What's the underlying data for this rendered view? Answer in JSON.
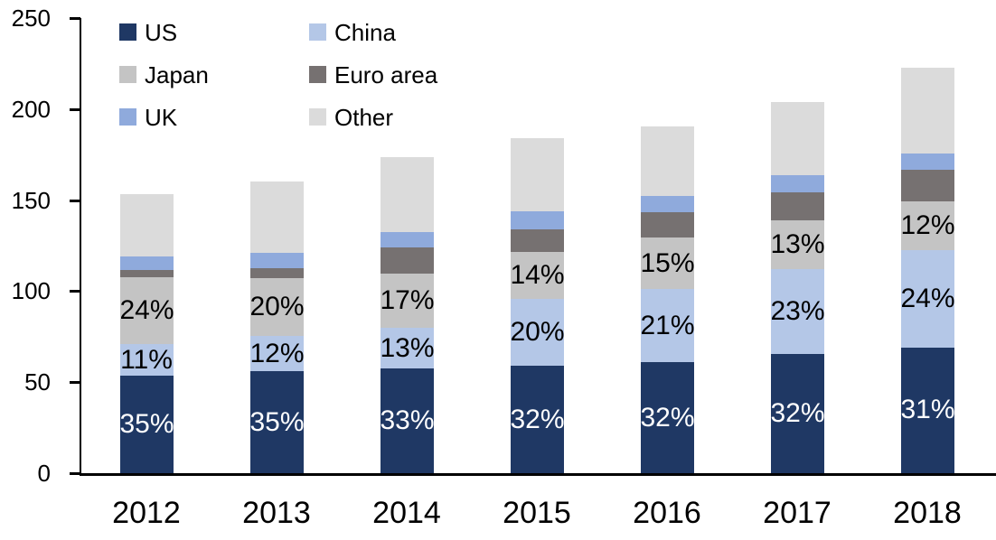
{
  "chart_data": {
    "type": "bar",
    "subtype": "stacked",
    "title": "",
    "xlabel": "",
    "ylabel": "",
    "categories": [
      "2012",
      "2013",
      "2014",
      "2015",
      "2016",
      "2017",
      "2018"
    ],
    "series": [
      {
        "name": "US",
        "color": "#1F3864",
        "values": [
          53.7,
          56.0,
          57.3,
          58.9,
          61.0,
          65.3,
          69.0
        ],
        "labels": [
          "35%",
          "35%",
          "33%",
          "32%",
          "32%",
          "32%",
          "31%"
        ],
        "label_color": "#FFFFFF"
      },
      {
        "name": "China",
        "color": "#B4C7E7",
        "values": [
          17.0,
          19.2,
          22.6,
          36.7,
          40.0,
          46.9,
          53.4
        ],
        "labels": [
          "11%",
          "12%",
          "13%",
          "20%",
          "21%",
          "23%",
          "24%"
        ],
        "label_color": "#000000"
      },
      {
        "name": "Japan",
        "color": "#C4C4C4",
        "values": [
          36.8,
          32.0,
          29.5,
          25.7,
          28.6,
          26.5,
          26.8
        ],
        "labels": [
          "24%",
          "20%",
          "17%",
          "14%",
          "15%",
          "13%",
          "12%"
        ],
        "label_color": "#000000"
      },
      {
        "name": "Euro area",
        "color": "#767171",
        "values": [
          4.0,
          5.5,
          14.6,
          12.7,
          13.7,
          15.7,
          17.5
        ],
        "labels": [
          "",
          "",
          "",
          "",
          "",
          "",
          ""
        ],
        "label_color": "#000000"
      },
      {
        "name": "UK",
        "color": "#8FAADC",
        "values": [
          7.5,
          8.3,
          8.6,
          9.7,
          9.0,
          9.1,
          9.0
        ],
        "labels": [
          "",
          "",
          "",
          "",
          "",
          "",
          ""
        ],
        "label_color": "#000000"
      },
      {
        "name": "Other",
        "color": "#DBDBDB",
        "values": [
          34.5,
          39.0,
          41.0,
          40.3,
          38.4,
          40.5,
          47.0
        ],
        "labels": [
          "",
          "",
          "",
          "",
          "",
          "",
          ""
        ],
        "label_color": "#000000"
      }
    ],
    "totals": [
      153.5,
      160.0,
      173.6,
      184.0,
      190.7,
      204.0,
      222.7
    ],
    "ylim": [
      0,
      250
    ],
    "yticks": [
      0,
      50,
      100,
      150,
      200,
      250
    ],
    "grid": false,
    "legend_position": "top-left",
    "legend_columns": 2,
    "axis_color": "#000000"
  }
}
